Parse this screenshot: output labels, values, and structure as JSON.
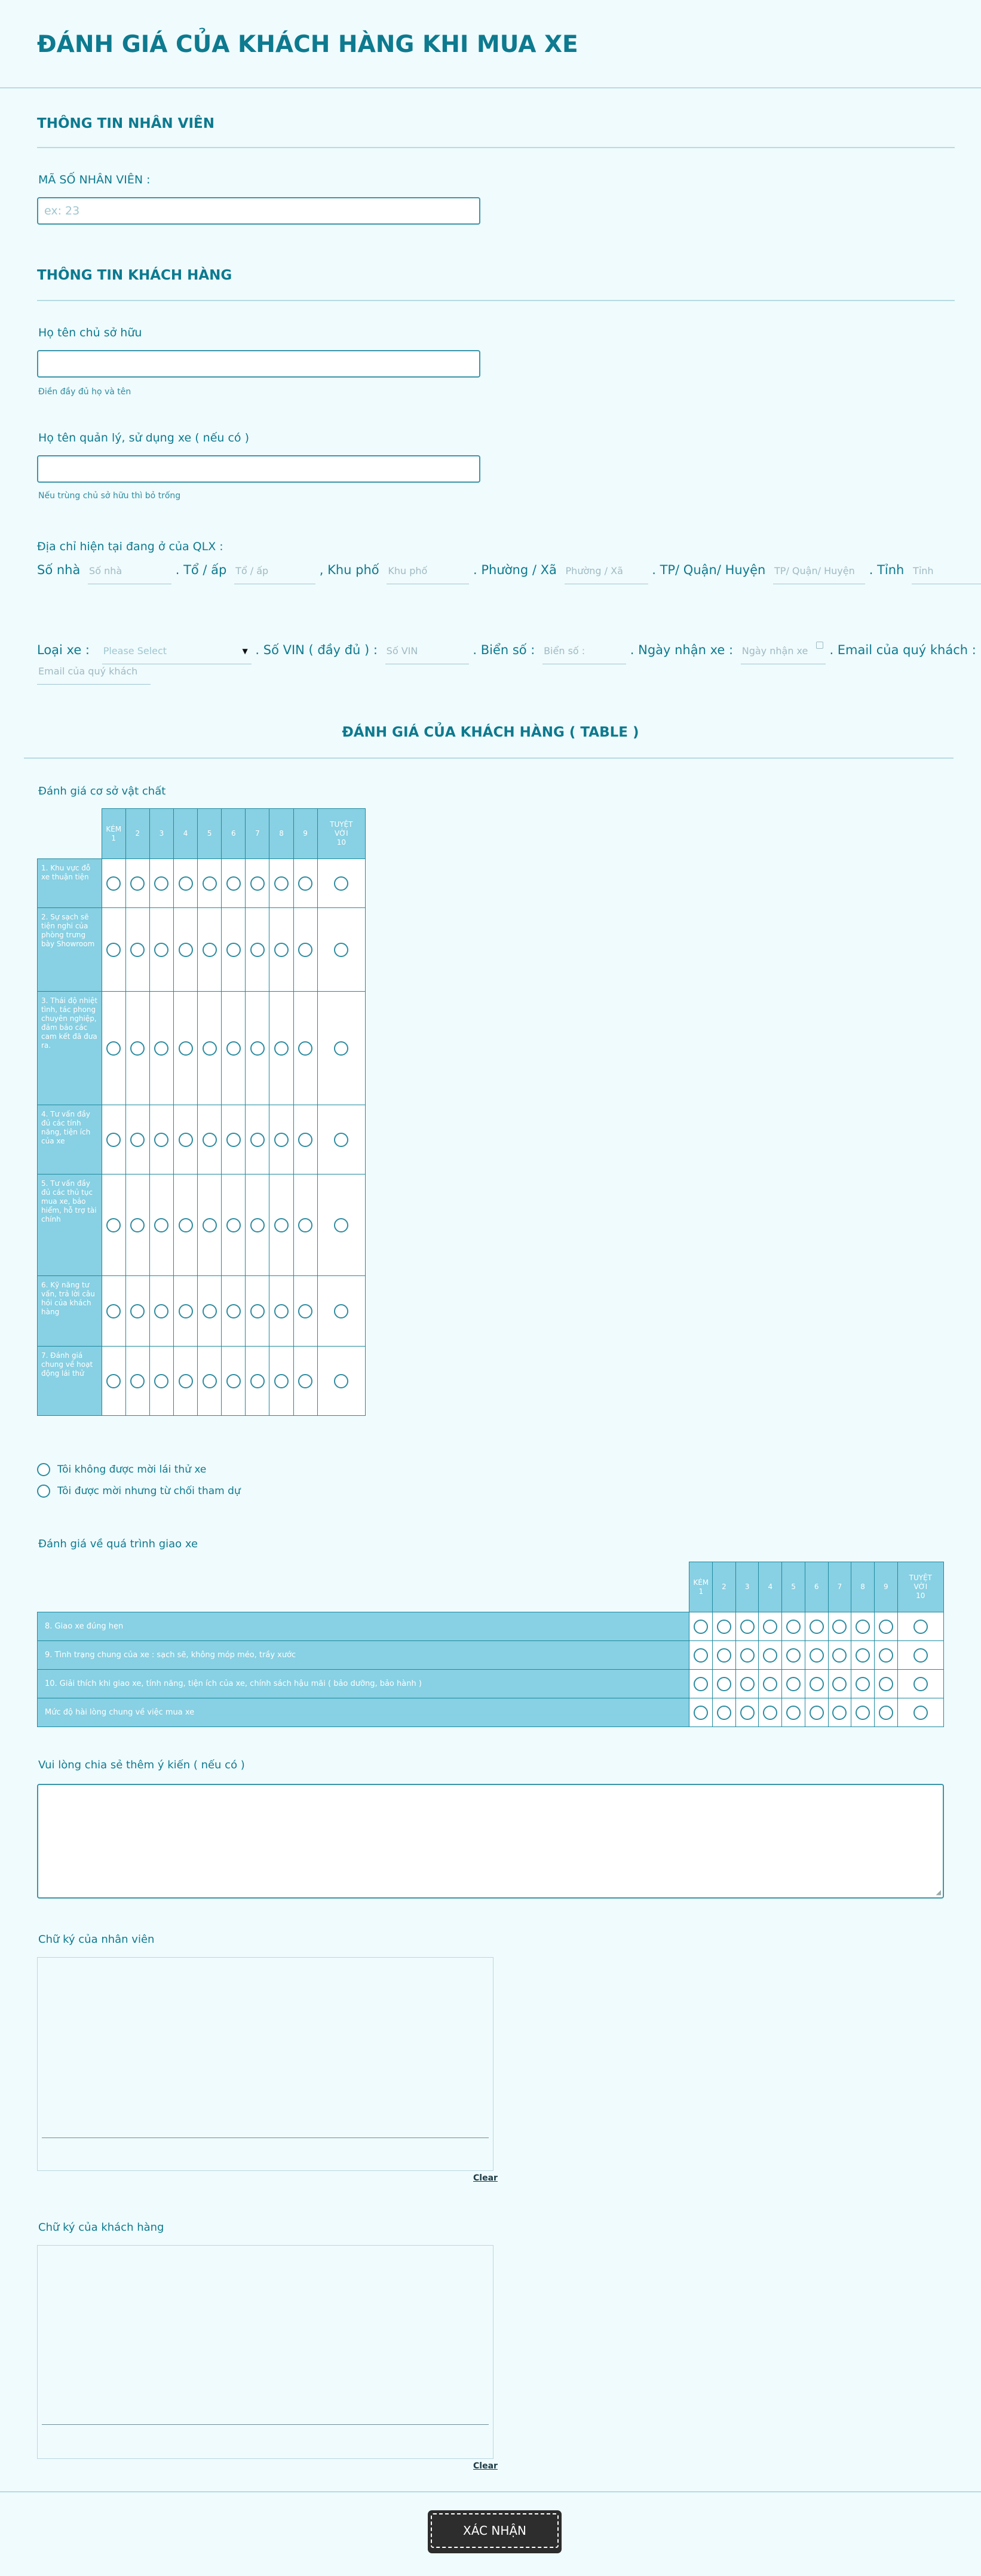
{
  "form": {
    "title": "ĐÁNH GIÁ CỦA KHÁCH HÀNG KHI MUA XE",
    "employee_section": "THÔNG TIN NHÂN VIÊN",
    "employee_id_label": "MÃ SỐ NHÂN VIÊN :",
    "employee_id_placeholder": "ex: 23",
    "customer_section": "THÔNG TIN KHÁCH HÀNG",
    "owner_name_label": "Họ tên chủ sở hữu",
    "owner_name_help": "Điền đầy đủ họ và tên",
    "user_name_label": "Họ tên quản lý, sử dụng xe ( nếu có )",
    "user_name_help": "Nếu trùng chủ sở hữu thì bỏ trống",
    "address_label": "Địa chỉ hiện tại đang ở của QLX :",
    "address": {
      "so_nha_label": "Số nhà",
      "so_nha_ph": "Số nhà",
      "to_ap_label": ". Tổ / ấp",
      "to_ap_ph": "Tổ / ấp",
      "khu_pho_label": ", Khu phố",
      "khu_pho_ph": "Khu phố",
      "phuong_label": ". Phường / Xã",
      "phuong_ph": "Phường / Xã",
      "quan_label": ". TP/ Quận/ Huyện",
      "quan_ph": "TP/ Quận/ Huyện",
      "tinh_label": ". Tỉnh",
      "tinh_ph": "Tỉnh"
    },
    "vehicle": {
      "loai_xe_label": "Loại xe :",
      "loai_xe_value": "Please Select",
      "vin_label": ". Số VIN ( đầy đủ ) :",
      "vin_ph": "Số VIN",
      "bien_so_label": ". Biển số :",
      "bien_so_ph": "Biển số :",
      "ngay_nhan_label": ". Ngày nhận xe :",
      "ngay_nhan_ph": "Ngày nhận xe",
      "email_label": ". Email của quý khách :",
      "email_ph": "Email của quý khách"
    },
    "rating_section": "ĐÁNH GIÁ CỦA KHÁCH HÀNG ( TABLE )",
    "facility_title": "Đánh giá cơ sở vật chất",
    "scale": [
      "KÉM\n1",
      "2",
      "3",
      "4",
      "5",
      "6",
      "7",
      "8",
      "9",
      "TUYỆT\nVỜI\n10"
    ],
    "facility_rows": [
      "1. Khu vực đỗ xe thuận tiện",
      "2. Sự sạch sẽ tiện nghi của phòng trưng bày Showroom",
      "3. Thái độ nhiệt tình, tác phong chuyên nghiệp, đảm bảo các cam kết đã đưa ra.",
      "4. Tư vấn đầy đủ các tính năng, tiện ích của xe",
      "5. Tư vấn đầy đủ các thủ tục mua xe, bảo hiểm, hỗ trợ tài chính",
      "6. Kỹ năng tư vấn, trả lời câu hỏi của khách hàng",
      "7. Đánh giá chung về hoạt động lái thử"
    ],
    "test_drive_options": [
      "Tôi không được mời lái thử xe",
      "Tôi được mời nhưng từ chối tham dự"
    ],
    "delivery_title": "Đánh giá về quá trình giao xe",
    "delivery_rows": [
      "8. Giao xe đúng hẹn",
      "9. Tình trạng chung của xe : sạch sẽ, không móp méo, trầy xước",
      "10. Giải thích khi giao xe, tính năng, tiện ích của xe, chính sách hậu mãi ( bảo dưỡng, bảo hành )",
      "Mức độ hài lòng chung về việc mua xe"
    ],
    "comment_label": "Vui lòng chia sẻ thêm ý kiến ( nếu có )",
    "staff_sign_label": "Chữ ký của nhân viên",
    "customer_sign_label": "Chữ ký của khách hàng",
    "clear_label": "Clear",
    "submit_label": "XÁC NHẬN"
  }
}
